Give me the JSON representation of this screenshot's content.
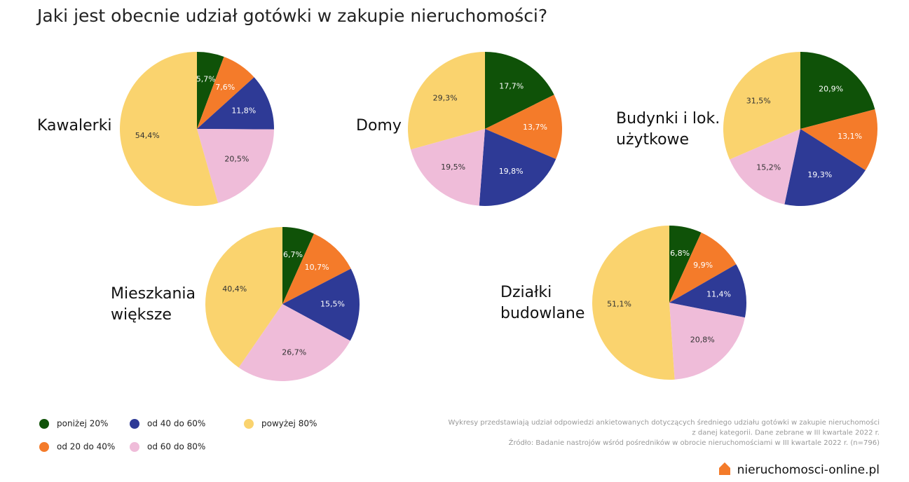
{
  "title": "Jaki jest obecnie udział gotówki w zakupie nieruchomości?",
  "legend": [
    {
      "name": "poniżej 20%",
      "color": "#0f5208"
    },
    {
      "name": "od 20 do 40%",
      "color": "#f47b2a"
    },
    {
      "name": "od 40 do 60%",
      "color": "#2e3a96"
    },
    {
      "name": "od 60 do 80%",
      "color": "#efbcd9"
    },
    {
      "name": "powyżej 80%",
      "color": "#fad36e"
    }
  ],
  "chart_data": [
    {
      "type": "pie",
      "title": "Kawalerki",
      "values": [
        5.7,
        7.6,
        11.8,
        20.5,
        54.4
      ],
      "value_labels": [
        "5,7%",
        "7,6%",
        "11,8%",
        "20,5%",
        "54,4%"
      ]
    },
    {
      "type": "pie",
      "title": "Domy",
      "values": [
        17.7,
        13.7,
        19.8,
        19.5,
        29.3
      ],
      "value_labels": [
        "17,7%",
        "13,7%",
        "19,8%",
        "19,5%",
        "29,3%"
      ]
    },
    {
      "type": "pie",
      "title": "Budynki i lok. użytkowe",
      "values": [
        20.9,
        13.1,
        19.3,
        15.2,
        31.5
      ],
      "value_labels": [
        "20,9%",
        "13,1%",
        "19,3%",
        "15,2%",
        "31,5%"
      ]
    },
    {
      "type": "pie",
      "title": "Mieszkania większe",
      "values": [
        6.7,
        10.7,
        15.5,
        26.7,
        40.4
      ],
      "value_labels": [
        "6,7%",
        "10,7%",
        "15,5%",
        "26,7%",
        "40,4%"
      ]
    },
    {
      "type": "pie",
      "title": "Działki budowlane",
      "values": [
        6.8,
        9.9,
        11.4,
        20.8,
        51.1
      ],
      "value_labels": [
        "6,8%",
        "9,9%",
        "11,4%",
        "20,8%",
        "51,1%"
      ]
    }
  ],
  "note": [
    "Wykresy przedstawiają udział odpowiedzi ankietowanych dotyczących średniego udziału gotówki w zakupie nieruchomości",
    "z danej kategorii. Dane zebrane w III kwartale 2022 r."
  ],
  "source": "Źródło: Badanie nastrojów wśród pośredników w obrocie nieruchomościami w III kwartale 2022 r. (n=796)",
  "logo": "nieruchomosci-online.pl"
}
